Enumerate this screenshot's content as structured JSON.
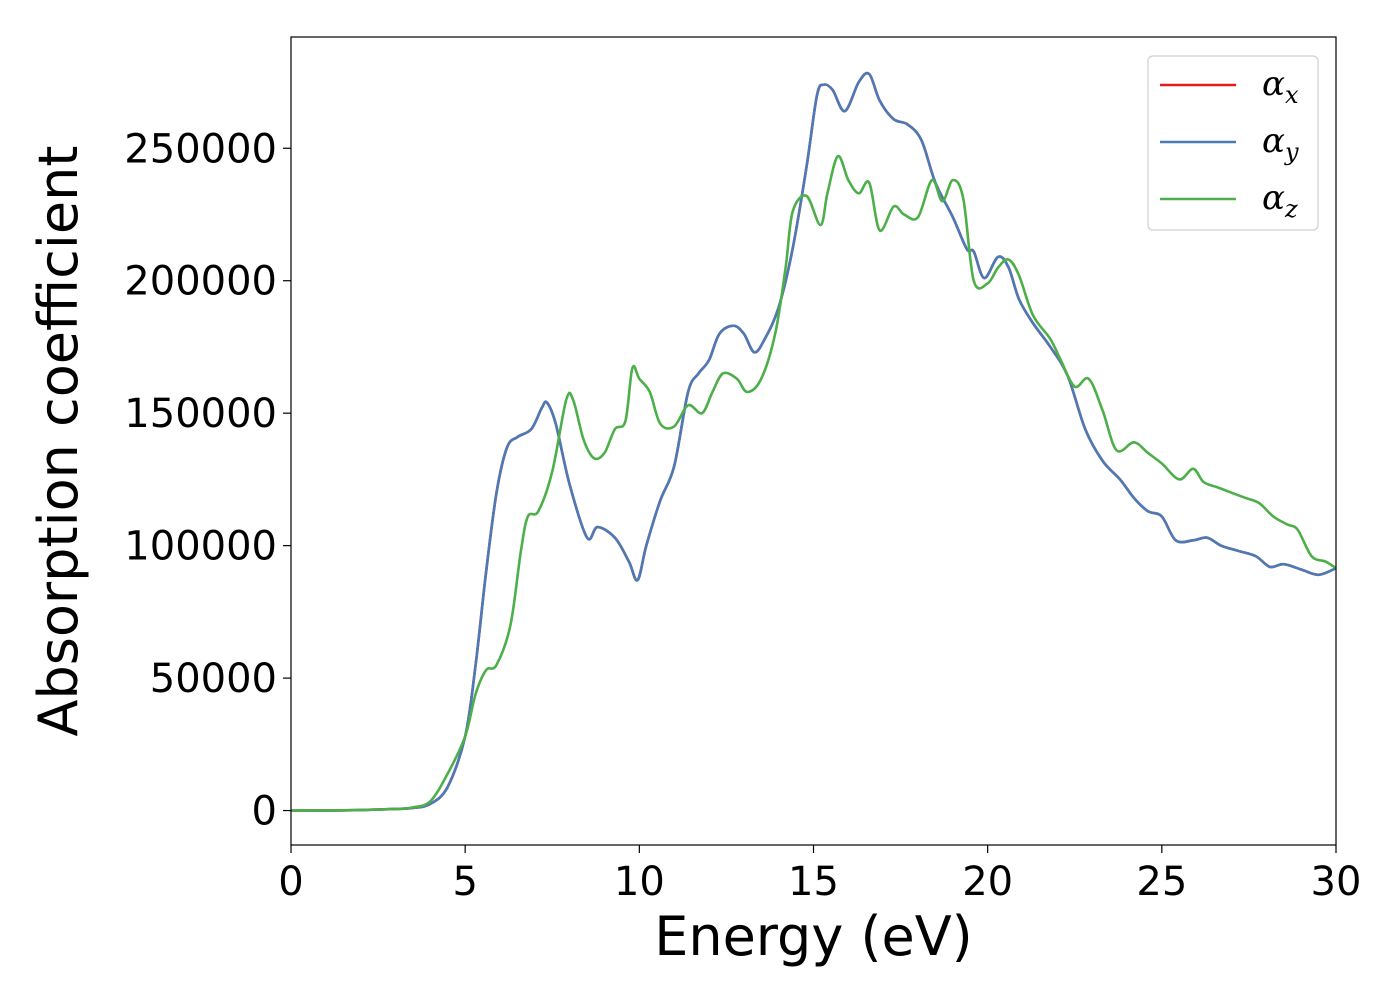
{
  "chart_data": {
    "type": "line",
    "title": "",
    "xlabel": "Energy (eV)",
    "ylabel": "Absorption coefficient",
    "xlim": [
      0,
      30
    ],
    "ylim": [
      -13000,
      292000
    ],
    "xticks": [
      0,
      5,
      10,
      15,
      20,
      25,
      30
    ],
    "xtick_labels": [
      "0",
      "5",
      "10",
      "15",
      "20",
      "25",
      "30"
    ],
    "yticks": [
      0,
      50000,
      100000,
      150000,
      200000,
      250000
    ],
    "ytick_labels": [
      "0",
      "50000",
      "100000",
      "150000",
      "200000",
      "250000"
    ],
    "grid": false,
    "legend_position": "top-right",
    "series": [
      {
        "name": "α",
        "subscript": "x",
        "color": "#e41a1c",
        "points": [
          [
            0,
            0
          ],
          [
            1,
            0
          ],
          [
            2,
            200
          ],
          [
            3,
            600
          ],
          [
            3.5,
            1000
          ],
          [
            4,
            2500
          ],
          [
            4.5,
            9000
          ],
          [
            5,
            28000
          ],
          [
            5.3,
            55000
          ],
          [
            5.6,
            90000
          ],
          [
            5.9,
            120000
          ],
          [
            6.2,
            137000
          ],
          [
            6.5,
            141000
          ],
          [
            6.9,
            144000
          ],
          [
            7.2,
            152000
          ],
          [
            7.35,
            154000
          ],
          [
            7.6,
            146000
          ],
          [
            8.0,
            123000
          ],
          [
            8.5,
            103000
          ],
          [
            8.8,
            107000
          ],
          [
            9.3,
            103000
          ],
          [
            9.7,
            94000
          ],
          [
            9.95,
            87000
          ],
          [
            10.2,
            100000
          ],
          [
            10.6,
            117000
          ],
          [
            11.0,
            130000
          ],
          [
            11.4,
            158000
          ],
          [
            11.7,
            165000
          ],
          [
            12.0,
            170000
          ],
          [
            12.3,
            180000
          ],
          [
            12.7,
            183000
          ],
          [
            13.0,
            180000
          ],
          [
            13.3,
            173000
          ],
          [
            13.6,
            178000
          ],
          [
            14.0,
            190000
          ],
          [
            14.4,
            212000
          ],
          [
            14.8,
            243000
          ],
          [
            15.1,
            270000
          ],
          [
            15.3,
            274000
          ],
          [
            15.55,
            272000
          ],
          [
            15.9,
            264000
          ],
          [
            16.3,
            275000
          ],
          [
            16.6,
            278000
          ],
          [
            16.9,
            268000
          ],
          [
            17.3,
            261000
          ],
          [
            17.7,
            259000
          ],
          [
            18.1,
            253000
          ],
          [
            18.5,
            237000
          ],
          [
            19.0,
            224000
          ],
          [
            19.4,
            212000
          ],
          [
            19.6,
            211000
          ],
          [
            19.9,
            201000
          ],
          [
            20.3,
            209000
          ],
          [
            20.6,
            205000
          ],
          [
            20.9,
            193000
          ],
          [
            21.3,
            184000
          ],
          [
            21.8,
            175000
          ],
          [
            22.3,
            164000
          ],
          [
            22.8,
            144000
          ],
          [
            23.3,
            132000
          ],
          [
            23.8,
            125000
          ],
          [
            24.2,
            118000
          ],
          [
            24.6,
            113000
          ],
          [
            25.0,
            111000
          ],
          [
            25.4,
            102000
          ],
          [
            25.9,
            102000
          ],
          [
            26.3,
            103000
          ],
          [
            26.7,
            100000
          ],
          [
            27.2,
            98000
          ],
          [
            27.7,
            96000
          ],
          [
            28.1,
            92000
          ],
          [
            28.5,
            93000
          ],
          [
            29.0,
            91000
          ],
          [
            29.5,
            89000
          ],
          [
            30,
            91500
          ]
        ]
      },
      {
        "name": "α",
        "subscript": "y",
        "color": "#4a7bb7",
        "points": [
          [
            0,
            0
          ],
          [
            1,
            0
          ],
          [
            2,
            200
          ],
          [
            3,
            600
          ],
          [
            3.5,
            1000
          ],
          [
            4,
            2500
          ],
          [
            4.5,
            9000
          ],
          [
            5,
            28000
          ],
          [
            5.3,
            55000
          ],
          [
            5.6,
            90000
          ],
          [
            5.9,
            120000
          ],
          [
            6.2,
            137000
          ],
          [
            6.5,
            141000
          ],
          [
            6.9,
            144000
          ],
          [
            7.2,
            152000
          ],
          [
            7.35,
            154000
          ],
          [
            7.6,
            146000
          ],
          [
            8.0,
            123000
          ],
          [
            8.5,
            103000
          ],
          [
            8.8,
            107000
          ],
          [
            9.3,
            103000
          ],
          [
            9.7,
            94000
          ],
          [
            9.95,
            87000
          ],
          [
            10.2,
            100000
          ],
          [
            10.6,
            117000
          ],
          [
            11.0,
            130000
          ],
          [
            11.4,
            158000
          ],
          [
            11.7,
            165000
          ],
          [
            12.0,
            170000
          ],
          [
            12.3,
            180000
          ],
          [
            12.7,
            183000
          ],
          [
            13.0,
            180000
          ],
          [
            13.3,
            173000
          ],
          [
            13.6,
            178000
          ],
          [
            14.0,
            190000
          ],
          [
            14.4,
            212000
          ],
          [
            14.8,
            243000
          ],
          [
            15.1,
            270000
          ],
          [
            15.3,
            274000
          ],
          [
            15.55,
            272000
          ],
          [
            15.9,
            264000
          ],
          [
            16.3,
            275000
          ],
          [
            16.6,
            278000
          ],
          [
            16.9,
            268000
          ],
          [
            17.3,
            261000
          ],
          [
            17.7,
            259000
          ],
          [
            18.1,
            253000
          ],
          [
            18.5,
            237000
          ],
          [
            19.0,
            224000
          ],
          [
            19.4,
            212000
          ],
          [
            19.6,
            211000
          ],
          [
            19.9,
            201000
          ],
          [
            20.3,
            209000
          ],
          [
            20.6,
            205000
          ],
          [
            20.9,
            193000
          ],
          [
            21.3,
            184000
          ],
          [
            21.8,
            175000
          ],
          [
            22.3,
            164000
          ],
          [
            22.8,
            144000
          ],
          [
            23.3,
            132000
          ],
          [
            23.8,
            125000
          ],
          [
            24.2,
            118000
          ],
          [
            24.6,
            113000
          ],
          [
            25.0,
            111000
          ],
          [
            25.4,
            102000
          ],
          [
            25.9,
            102000
          ],
          [
            26.3,
            103000
          ],
          [
            26.7,
            100000
          ],
          [
            27.2,
            98000
          ],
          [
            27.7,
            96000
          ],
          [
            28.1,
            92000
          ],
          [
            28.5,
            93000
          ],
          [
            29.0,
            91000
          ],
          [
            29.5,
            89000
          ],
          [
            30,
            91500
          ]
        ]
      },
      {
        "name": "α",
        "subscript": "z",
        "color": "#4daf4a",
        "points": [
          [
            0,
            0
          ],
          [
            1,
            0
          ],
          [
            2,
            200
          ],
          [
            3,
            600
          ],
          [
            3.5,
            1200
          ],
          [
            4,
            3500
          ],
          [
            4.5,
            14000
          ],
          [
            5,
            28000
          ],
          [
            5.3,
            44000
          ],
          [
            5.6,
            53000
          ],
          [
            5.9,
            55000
          ],
          [
            6.3,
            70000
          ],
          [
            6.6,
            98000
          ],
          [
            6.8,
            111000
          ],
          [
            7.1,
            113000
          ],
          [
            7.5,
            128000
          ],
          [
            7.9,
            155000
          ],
          [
            8.1,
            155000
          ],
          [
            8.4,
            140000
          ],
          [
            8.7,
            133000
          ],
          [
            9.0,
            135000
          ],
          [
            9.3,
            144000
          ],
          [
            9.6,
            147000
          ],
          [
            9.8,
            167000
          ],
          [
            10.0,
            163000
          ],
          [
            10.3,
            158000
          ],
          [
            10.6,
            146000
          ],
          [
            11.0,
            145000
          ],
          [
            11.4,
            153000
          ],
          [
            11.8,
            150000
          ],
          [
            12.1,
            158000
          ],
          [
            12.4,
            165000
          ],
          [
            12.8,
            163000
          ],
          [
            13.1,
            158000
          ],
          [
            13.5,
            163000
          ],
          [
            13.9,
            180000
          ],
          [
            14.2,
            205000
          ],
          [
            14.4,
            226000
          ],
          [
            14.8,
            232000
          ],
          [
            15.2,
            221000
          ],
          [
            15.4,
            233000
          ],
          [
            15.7,
            247000
          ],
          [
            16.0,
            238000
          ],
          [
            16.3,
            233000
          ],
          [
            16.6,
            237000
          ],
          [
            16.9,
            219000
          ],
          [
            17.3,
            228000
          ],
          [
            17.6,
            225000
          ],
          [
            18.0,
            224000
          ],
          [
            18.4,
            238000
          ],
          [
            18.7,
            230000
          ],
          [
            19.0,
            238000
          ],
          [
            19.3,
            231000
          ],
          [
            19.6,
            200000
          ],
          [
            20.0,
            199000
          ],
          [
            20.3,
            205000
          ],
          [
            20.6,
            208000
          ],
          [
            20.9,
            202000
          ],
          [
            21.3,
            187000
          ],
          [
            21.8,
            178000
          ],
          [
            22.1,
            170000
          ],
          [
            22.5,
            160000
          ],
          [
            22.9,
            163000
          ],
          [
            23.3,
            151000
          ],
          [
            23.7,
            136000
          ],
          [
            24.2,
            139000
          ],
          [
            24.6,
            135000
          ],
          [
            25.0,
            131000
          ],
          [
            25.5,
            125000
          ],
          [
            25.9,
            129000
          ],
          [
            26.2,
            124000
          ],
          [
            26.6,
            122000
          ],
          [
            27.0,
            120000
          ],
          [
            27.4,
            118000
          ],
          [
            27.8,
            116000
          ],
          [
            28.2,
            111000
          ],
          [
            28.6,
            108000
          ],
          [
            28.9,
            106000
          ],
          [
            29.3,
            96000
          ],
          [
            29.7,
            94000
          ],
          [
            30,
            91500
          ]
        ]
      }
    ]
  }
}
